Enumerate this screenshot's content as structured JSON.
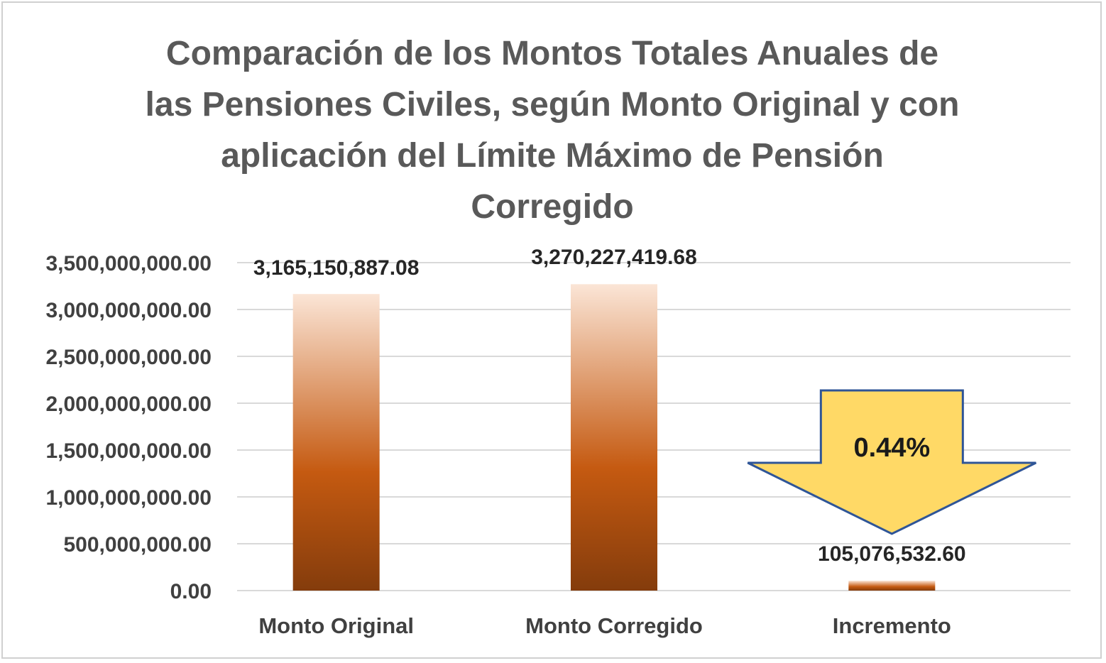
{
  "chart_data": {
    "type": "bar",
    "title": "Comparación de los Montos Totales Anuales de las Pensiones Civiles, según Monto Original y con aplicación del Límite Máximo de Pensión Corregido",
    "title_lines": [
      "Comparación de los Montos Totales Anuales de",
      "las Pensiones Civiles, según Monto Original y con",
      "aplicación del Límite Máximo de Pensión",
      "Corregido"
    ],
    "categories": [
      "Monto Original",
      "Monto Corregido",
      "Incremento"
    ],
    "values": [
      3165150887.08,
      3270227419.68,
      105076532.6
    ],
    "data_labels": [
      "3,165,150,887.08",
      "3,270,227,419.68",
      "105,076,532.60"
    ],
    "ylim": [
      0,
      3500000000
    ],
    "yticks": [
      0,
      500000000,
      1000000000,
      1500000000,
      2000000000,
      2500000000,
      3000000000,
      3500000000
    ],
    "ytick_labels": [
      "0.00",
      "500,000,000.00",
      "1,000,000,000.00",
      "1,500,000,000.00",
      "2,000,000,000.00",
      "2,500,000,000.00",
      "3,000,000,000.00",
      "3,500,000,000.00"
    ],
    "grid": true,
    "legend": "none",
    "annotation": {
      "text": "0.44%",
      "shape": "down-arrow",
      "category": "Incremento",
      "fill": "#ffd966",
      "stroke": "#2f5597"
    },
    "colors": {
      "bar_top": "#fbe5d6",
      "bar_mid": "#c55a11",
      "bar_bottom": "#843c0c",
      "grid": "#d9d9d9"
    }
  }
}
